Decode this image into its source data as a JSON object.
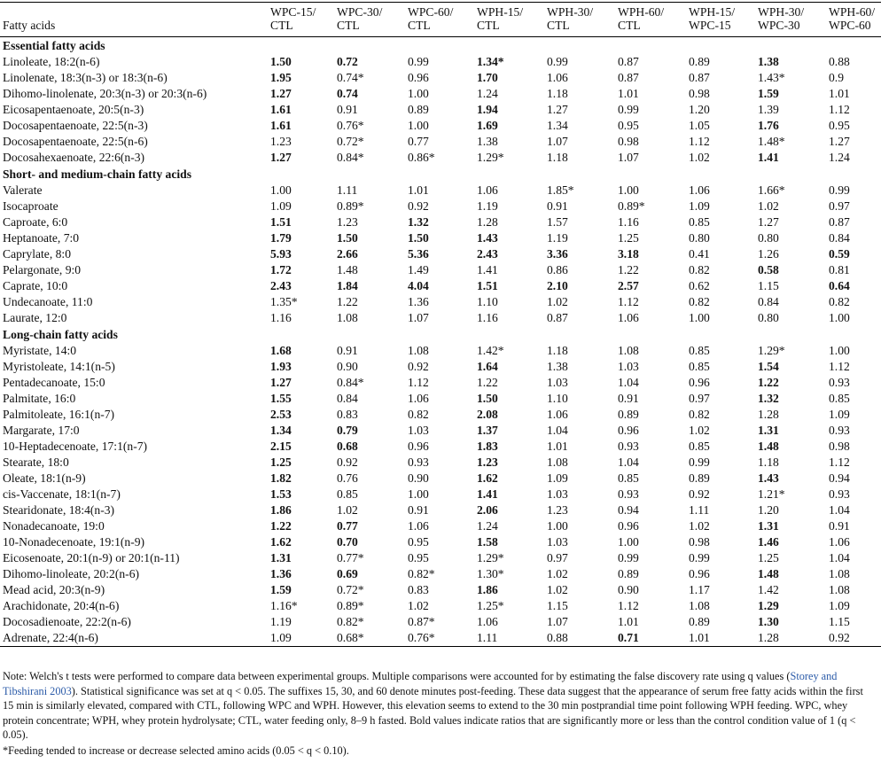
{
  "table": {
    "header": {
      "label": "Fatty acids",
      "columns": [
        [
          "WPC-15/",
          "CTL"
        ],
        [
          "WPC-30/",
          "CTL"
        ],
        [
          "WPC-60/",
          "CTL"
        ],
        [
          "WPH-15/",
          "CTL"
        ],
        [
          "WPH-30/",
          "CTL"
        ],
        [
          "WPH-60/",
          "CTL"
        ],
        [
          "WPH-15/",
          "WPC-15"
        ],
        [
          "WPH-30/",
          "WPC-30"
        ],
        [
          "WPH-60/",
          "WPC-60"
        ]
      ]
    },
    "sections": [
      {
        "title": "Essential fatty acids",
        "rows": [
          {
            "label": "Linoleate, 18:2(n-6)",
            "cells": [
              "1.50",
              "0.72",
              "0.99",
              "1.34*",
              "0.99",
              "0.87",
              "0.89",
              "1.38",
              "0.88"
            ],
            "bold": [
              0,
              1,
              3,
              7
            ]
          },
          {
            "label": "Linolenate, 18:3(n-3) or 18:3(n-6)",
            "cells": [
              "1.95",
              "0.74*",
              "0.96",
              "1.70",
              "1.06",
              "0.87",
              "0.87",
              "1.43*",
              "0.9"
            ],
            "bold": [
              0,
              3
            ]
          },
          {
            "label": "Dihomo-linolenate, 20:3(n-3) or 20:3(n-6)",
            "cells": [
              "1.27",
              "0.74",
              "1.00",
              "1.24",
              "1.18",
              "1.01",
              "0.98",
              "1.59",
              "1.01"
            ],
            "bold": [
              0,
              1,
              7
            ]
          },
          {
            "label": "Eicosapentaenoate, 20:5(n-3)",
            "cells": [
              "1.61",
              "0.91",
              "0.89",
              "1.94",
              "1.27",
              "0.99",
              "1.20",
              "1.39",
              "1.12"
            ],
            "bold": [
              0,
              3
            ]
          },
          {
            "label": "Docosapentaenoate, 22:5(n-3)",
            "cells": [
              "1.61",
              "0.76*",
              "1.00",
              "1.69",
              "1.34",
              "0.95",
              "1.05",
              "1.76",
              "0.95"
            ],
            "bold": [
              0,
              3,
              7
            ]
          },
          {
            "label": "Docosapentaenoate, 22:5(n-6)",
            "cells": [
              "1.23",
              "0.72*",
              "0.77",
              "1.38",
              "1.07",
              "0.98",
              "1.12",
              "1.48*",
              "1.27"
            ],
            "bold": []
          },
          {
            "label": "Docosahexaenoate, 22:6(n-3)",
            "cells": [
              "1.27",
              "0.84*",
              "0.86*",
              "1.29*",
              "1.18",
              "1.07",
              "1.02",
              "1.41",
              "1.24"
            ],
            "bold": [
              0,
              7
            ]
          }
        ]
      },
      {
        "title": "Short- and medium-chain fatty acids",
        "rows": [
          {
            "label": "Valerate",
            "cells": [
              "1.00",
              "1.11",
              "1.01",
              "1.06",
              "1.85*",
              "1.00",
              "1.06",
              "1.66*",
              "0.99"
            ],
            "bold": []
          },
          {
            "label": "Isocaproate",
            "cells": [
              "1.09",
              "0.89*",
              "0.92",
              "1.19",
              "0.91",
              "0.89*",
              "1.09",
              "1.02",
              "0.97"
            ],
            "bold": []
          },
          {
            "label": "Caproate, 6:0",
            "cells": [
              "1.51",
              "1.23",
              "1.32",
              "1.28",
              "1.57",
              "1.16",
              "0.85",
              "1.27",
              "0.87"
            ],
            "bold": [
              0,
              2
            ]
          },
          {
            "label": "Heptanoate, 7:0",
            "cells": [
              "1.79",
              "1.50",
              "1.50",
              "1.43",
              "1.19",
              "1.25",
              "0.80",
              "0.80",
              "0.84"
            ],
            "bold": [
              0,
              1,
              2,
              3
            ]
          },
          {
            "label": "Caprylate, 8:0",
            "cells": [
              "5.93",
              "2.66",
              "5.36",
              "2.43",
              "3.36",
              "3.18",
              "0.41",
              "1.26",
              "0.59"
            ],
            "bold": [
              0,
              1,
              2,
              3,
              4,
              5,
              8
            ]
          },
          {
            "label": "Pelargonate, 9:0",
            "cells": [
              "1.72",
              "1.48",
              "1.49",
              "1.41",
              "0.86",
              "1.22",
              "0.82",
              "0.58",
              "0.81"
            ],
            "bold": [
              0,
              7
            ]
          },
          {
            "label": "Caprate, 10:0",
            "cells": [
              "2.43",
              "1.84",
              "4.04",
              "1.51",
              "2.10",
              "2.57",
              "0.62",
              "1.15",
              "0.64"
            ],
            "bold": [
              0,
              1,
              2,
              3,
              4,
              5,
              8
            ]
          },
          {
            "label": "Undecanoate, 11:0",
            "cells": [
              "1.35*",
              "1.22",
              "1.36",
              "1.10",
              "1.02",
              "1.12",
              "0.82",
              "0.84",
              "0.82"
            ],
            "bold": []
          },
          {
            "label": "Laurate, 12:0",
            "cells": [
              "1.16",
              "1.08",
              "1.07",
              "1.16",
              "0.87",
              "1.06",
              "1.00",
              "0.80",
              "1.00"
            ],
            "bold": []
          }
        ]
      },
      {
        "title": "Long-chain fatty acids",
        "rows": [
          {
            "label": "Myristate, 14:0",
            "cells": [
              "1.68",
              "0.91",
              "1.08",
              "1.42*",
              "1.18",
              "1.08",
              "0.85",
              "1.29*",
              "1.00"
            ],
            "bold": [
              0
            ]
          },
          {
            "label": "Myristoleate, 14:1(n-5)",
            "cells": [
              "1.93",
              "0.90",
              "0.92",
              "1.64",
              "1.38",
              "1.03",
              "0.85",
              "1.54",
              "1.12"
            ],
            "bold": [
              0,
              3,
              7
            ]
          },
          {
            "label": "Pentadecanoate, 15:0",
            "cells": [
              "1.27",
              "0.84*",
              "1.12",
              "1.22",
              "1.03",
              "1.04",
              "0.96",
              "1.22",
              "0.93"
            ],
            "bold": [
              0,
              7
            ]
          },
          {
            "label": "Palmitate, 16:0",
            "cells": [
              "1.55",
              "0.84",
              "1.06",
              "1.50",
              "1.10",
              "0.91",
              "0.97",
              "1.32",
              "0.85"
            ],
            "bold": [
              0,
              3,
              7
            ]
          },
          {
            "label": "Palmitoleate, 16:1(n-7)",
            "cells": [
              "2.53",
              "0.83",
              "0.82",
              "2.08",
              "1.06",
              "0.89",
              "0.82",
              "1.28",
              "1.09"
            ],
            "bold": [
              0,
              3
            ]
          },
          {
            "label": "Margarate, 17:0",
            "cells": [
              "1.34",
              "0.79",
              "1.03",
              "1.37",
              "1.04",
              "0.96",
              "1.02",
              "1.31",
              "0.93"
            ],
            "bold": [
              0,
              1,
              3,
              7
            ]
          },
          {
            "label": "10-Heptadecenoate, 17:1(n-7)",
            "cells": [
              "2.15",
              "0.68",
              "0.96",
              "1.83",
              "1.01",
              "0.93",
              "0.85",
              "1.48",
              "0.98"
            ],
            "bold": [
              0,
              1,
              3,
              7
            ]
          },
          {
            "label": "Stearate, 18:0",
            "cells": [
              "1.25",
              "0.92",
              "0.93",
              "1.23",
              "1.08",
              "1.04",
              "0.99",
              "1.18",
              "1.12"
            ],
            "bold": [
              0,
              3
            ]
          },
          {
            "label": "Oleate, 18:1(n-9)",
            "cells": [
              "1.82",
              "0.76",
              "0.90",
              "1.62",
              "1.09",
              "0.85",
              "0.89",
              "1.43",
              "0.94"
            ],
            "bold": [
              0,
              3,
              7
            ]
          },
          {
            "label": "cis-Vaccenate, 18:1(n-7)",
            "cells": [
              "1.53",
              "0.85",
              "1.00",
              "1.41",
              "1.03",
              "0.93",
              "0.92",
              "1.21*",
              "0.93"
            ],
            "bold": [
              0,
              3
            ]
          },
          {
            "label": "Stearidonate, 18:4(n-3)",
            "cells": [
              "1.86",
              "1.02",
              "0.91",
              "2.06",
              "1.23",
              "0.94",
              "1.11",
              "1.20",
              "1.04"
            ],
            "bold": [
              0,
              3
            ]
          },
          {
            "label": "Nonadecanoate, 19:0",
            "cells": [
              "1.22",
              "0.77",
              "1.06",
              "1.24",
              "1.00",
              "0.96",
              "1.02",
              "1.31",
              "0.91"
            ],
            "bold": [
              0,
              1,
              7
            ]
          },
          {
            "label": "10-Nonadecenoate, 19:1(n-9)",
            "cells": [
              "1.62",
              "0.70",
              "0.95",
              "1.58",
              "1.03",
              "1.00",
              "0.98",
              "1.46",
              "1.06"
            ],
            "bold": [
              0,
              1,
              3,
              7
            ]
          },
          {
            "label": "Eicosenoate, 20:1(n-9) or 20:1(n-11)",
            "cells": [
              "1.31",
              "0.77*",
              "0.95",
              "1.29*",
              "0.97",
              "0.99",
              "0.99",
              "1.25",
              "1.04"
            ],
            "bold": [
              0
            ]
          },
          {
            "label": "Dihomo-linoleate, 20:2(n-6)",
            "cells": [
              "1.36",
              "0.69",
              "0.82*",
              "1.30*",
              "1.02",
              "0.89",
              "0.96",
              "1.48",
              "1.08"
            ],
            "bold": [
              0,
              1,
              7
            ]
          },
          {
            "label": "Mead acid, 20:3(n-9)",
            "cells": [
              "1.59",
              "0.72*",
              "0.83",
              "1.86",
              "1.02",
              "0.90",
              "1.17",
              "1.42",
              "1.08"
            ],
            "bold": [
              0,
              3
            ]
          },
          {
            "label": "Arachidonate, 20:4(n-6)",
            "cells": [
              "1.16*",
              "0.89*",
              "1.02",
              "1.25*",
              "1.15",
              "1.12",
              "1.08",
              "1.29",
              "1.09"
            ],
            "bold": [
              7
            ]
          },
          {
            "label": "Docosadienoate, 22:2(n-6)",
            "cells": [
              "1.19",
              "0.82*",
              "0.87*",
              "1.06",
              "1.07",
              "1.01",
              "0.89",
              "1.30",
              "1.15"
            ],
            "bold": [
              7
            ]
          },
          {
            "label": "Adrenate, 22:4(n-6)",
            "cells": [
              "1.09",
              "0.68*",
              "0.76*",
              "1.11",
              "0.88",
              "0.71",
              "1.01",
              "1.28",
              "0.92"
            ],
            "bold": [
              5
            ]
          }
        ]
      }
    ]
  },
  "note": [
    "Note: Welch's t tests were performed to compare data between experimental groups. Multiple comparisons were accounted for by estimating the false discovery rate using q values (",
    "Storey and Tibshirani 2003",
    "). Statistical significance was set at q < 0.05. The suffixes 15, 30, and 60 denote minutes post-feeding. These data suggest that the appearance of serum free fatty acids within the first 15 min is similarly elevated, compared with CTL, following WPC and WPH. However, this elevation seems to extend to the 30 min postprandial time point following WPH feeding. WPC, whey protein concentrate; WPH, whey protein hydrolysate; CTL, water feeding only, 8–9 h fasted. Bold values indicate ratios that are significantly more or less than the control condition value of 1 (q < 0.05)."
  ],
  "footnote": "*Feeding tended to increase or decrease selected amino acids (0.05 < q < 0.10)."
}
